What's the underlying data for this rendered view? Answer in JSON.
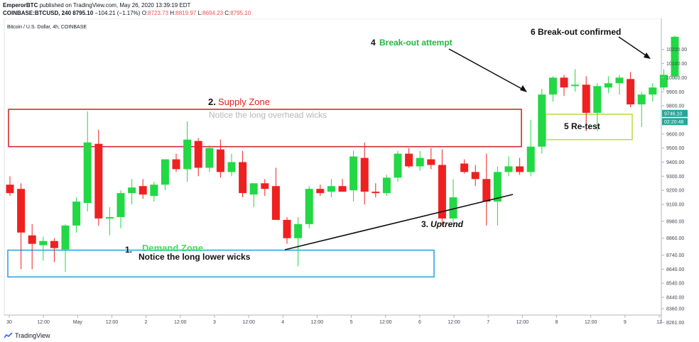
{
  "header": {
    "line1_user": "EmperorBTC",
    "line1_rest": " published on TradingView.com, May 26, 2020 13:39:19 EDT",
    "symbol": "COINBASE:BTCUSD, 240",
    "last": "8795.10",
    "change": "−104.21 (−1.17%)",
    "o_label": "O:",
    "o_value": "8723.73",
    "h_label": "H:",
    "h_value": "8819.97",
    "l_label": "L:",
    "l_value": "8694.23",
    "c_label": "C:",
    "c_value": "8795.10"
  },
  "chart_title": "Bitcoin / U.S. Dollar, 4h, COINBASE",
  "footer": {
    "brand": "TradingView"
  },
  "colors": {
    "up": "#22d844",
    "down": "#ef2020",
    "supply": "#d22b2b",
    "demand": "#2ea6e0",
    "retest": "#b9dd4c"
  },
  "chart_data": {
    "type": "candlestick",
    "title": "Bitcoin / U.S. Dollar, 4h, COINBASE",
    "ylim": [
      8261,
      10310
    ],
    "y_ticks": [
      10200,
      10100,
      10000,
      9900,
      9800,
      9700,
      9600,
      9500,
      9400,
      9300,
      9200,
      9100,
      8980,
      8860,
      8740,
      8640,
      8540,
      8440,
      8360,
      8261
    ],
    "y_tick_labels": [
      "10200.00",
      "10100.00",
      "10000.00",
      "9900.00",
      "9800.00",
      "9700.00",
      "9600.00",
      "9500.00",
      "9400.00",
      "9300.00",
      "9200.00",
      "9100.00",
      "8980.00",
      "8860.00",
      "8740.00",
      "8640.00",
      "8540.00",
      "8440.00",
      "8360.00",
      "8261.00"
    ],
    "x_tick_labels": [
      "30",
      "12:00",
      "May",
      "12:00",
      "2",
      "12:00",
      "3",
      "12:00",
      "4",
      "12:00",
      "5",
      "12:00",
      "6",
      "12:00",
      "7",
      "12:00",
      "8",
      "12:00",
      "9",
      "12"
    ],
    "price_labels": [
      {
        "text": "9746.10",
        "price": 9746,
        "color": "#26a69a"
      },
      {
        "text": "02:20:48",
        "price": 9688,
        "color": "#26a69a"
      }
    ],
    "candles": [
      {
        "o": 9240,
        "h": 9300,
        "l": 9160,
        "c": 9180
      },
      {
        "o": 9210,
        "h": 9250,
        "l": 8640,
        "c": 8900
      },
      {
        "o": 8880,
        "h": 8960,
        "l": 8640,
        "c": 8820
      },
      {
        "o": 8810,
        "h": 8870,
        "l": 8700,
        "c": 8840
      },
      {
        "o": 8840,
        "h": 8860,
        "l": 8690,
        "c": 8790
      },
      {
        "o": 8780,
        "h": 8960,
        "l": 8620,
        "c": 8950
      },
      {
        "o": 8950,
        "h": 9150,
        "l": 8900,
        "c": 9120
      },
      {
        "o": 9110,
        "h": 9760,
        "l": 9050,
        "c": 9540
      },
      {
        "o": 9530,
        "h": 9630,
        "l": 8950,
        "c": 9000
      },
      {
        "o": 9000,
        "h": 9080,
        "l": 8880,
        "c": 9010
      },
      {
        "o": 9010,
        "h": 9200,
        "l": 8930,
        "c": 9180
      },
      {
        "o": 9180,
        "h": 9280,
        "l": 9100,
        "c": 9220
      },
      {
        "o": 9230,
        "h": 9280,
        "l": 9140,
        "c": 9170
      },
      {
        "o": 9160,
        "h": 9260,
        "l": 9120,
        "c": 9240
      },
      {
        "o": 9240,
        "h": 9420,
        "l": 9200,
        "c": 9420
      },
      {
        "o": 9420,
        "h": 9460,
        "l": 9330,
        "c": 9350
      },
      {
        "o": 9350,
        "h": 9690,
        "l": 9260,
        "c": 9560
      },
      {
        "o": 9550,
        "h": 9570,
        "l": 9300,
        "c": 9360
      },
      {
        "o": 9360,
        "h": 9520,
        "l": 9330,
        "c": 9500
      },
      {
        "o": 9490,
        "h": 9560,
        "l": 9290,
        "c": 9330
      },
      {
        "o": 9330,
        "h": 9460,
        "l": 9300,
        "c": 9400
      },
      {
        "o": 9400,
        "h": 9480,
        "l": 9150,
        "c": 9180
      },
      {
        "o": 9170,
        "h": 9250,
        "l": 9080,
        "c": 9250
      },
      {
        "o": 9250,
        "h": 9280,
        "l": 9160,
        "c": 9210
      },
      {
        "o": 9230,
        "h": 9360,
        "l": 9000,
        "c": 8990
      },
      {
        "o": 8990,
        "h": 9010,
        "l": 8820,
        "c": 8860
      },
      {
        "o": 8860,
        "h": 9010,
        "l": 8660,
        "c": 8960
      },
      {
        "o": 8960,
        "h": 9230,
        "l": 8930,
        "c": 9210
      },
      {
        "o": 9210,
        "h": 9240,
        "l": 9160,
        "c": 9180
      },
      {
        "o": 9190,
        "h": 9280,
        "l": 9150,
        "c": 9230
      },
      {
        "o": 9230,
        "h": 9280,
        "l": 9190,
        "c": 9190
      },
      {
        "o": 9200,
        "h": 9480,
        "l": 9120,
        "c": 9440
      },
      {
        "o": 9430,
        "h": 9540,
        "l": 9100,
        "c": 9190
      },
      {
        "o": 9190,
        "h": 9250,
        "l": 9150,
        "c": 9180
      },
      {
        "o": 9180,
        "h": 9310,
        "l": 9160,
        "c": 9290
      },
      {
        "o": 9290,
        "h": 9480,
        "l": 9260,
        "c": 9460
      },
      {
        "o": 9460,
        "h": 9500,
        "l": 9360,
        "c": 9370
      },
      {
        "o": 9370,
        "h": 9480,
        "l": 9340,
        "c": 9430
      },
      {
        "o": 9420,
        "h": 9500,
        "l": 9350,
        "c": 9380
      },
      {
        "o": 9380,
        "h": 9490,
        "l": 8950,
        "c": 9000
      },
      {
        "o": 9000,
        "h": 9280,
        "l": 8960,
        "c": 9150
      },
      {
        "o": 9390,
        "h": 9420,
        "l": 9320,
        "c": 9330
      },
      {
        "o": 9330,
        "h": 9380,
        "l": 9230,
        "c": 9280
      },
      {
        "o": 9280,
        "h": 9460,
        "l": 8950,
        "c": 9120
      },
      {
        "o": 9120,
        "h": 9370,
        "l": 8950,
        "c": 9330
      },
      {
        "o": 9330,
        "h": 9440,
        "l": 9300,
        "c": 9370
      },
      {
        "o": 9370,
        "h": 9430,
        "l": 9310,
        "c": 9330
      },
      {
        "o": 9330,
        "h": 9700,
        "l": 9300,
        "c": 9510
      },
      {
        "o": 9510,
        "h": 9920,
        "l": 9460,
        "c": 9880
      },
      {
        "o": 9880,
        "h": 10010,
        "l": 9830,
        "c": 10000
      },
      {
        "o": 10000,
        "h": 10020,
        "l": 9870,
        "c": 9930
      },
      {
        "o": 9940,
        "h": 10060,
        "l": 9900,
        "c": 9950
      },
      {
        "o": 9950,
        "h": 10010,
        "l": 9620,
        "c": 9750
      },
      {
        "o": 9750,
        "h": 9960,
        "l": 9620,
        "c": 9940
      },
      {
        "o": 9930,
        "h": 10010,
        "l": 9890,
        "c": 9960
      },
      {
        "o": 9960,
        "h": 10020,
        "l": 9880,
        "c": 10000
      },
      {
        "o": 9990,
        "h": 10040,
        "l": 9790,
        "c": 9810
      },
      {
        "o": 9810,
        "h": 9900,
        "l": 9650,
        "c": 9880
      },
      {
        "o": 9880,
        "h": 9960,
        "l": 9830,
        "c": 9930
      },
      {
        "o": 9930,
        "h": 10060,
        "l": 9910,
        "c": 10020
      },
      {
        "o": 10010,
        "h": 10300,
        "l": 9990,
        "c": 10290
      }
    ],
    "zones": {
      "supply": {
        "top": 9775,
        "bottom": 9510
      },
      "demand": {
        "top": 8775,
        "bottom": 8585
      },
      "retest": {
        "top": 9740,
        "bottom": 9560
      }
    }
  },
  "annotations": {
    "supply_number": "2.",
    "supply_title": "Supply Zone",
    "supply_note": "Notice the long overhead wicks",
    "demand_number": "1.",
    "demand_title": "Demand Zone",
    "demand_note": "Notice the long lower wicks",
    "uptrend_number": "3.",
    "uptrend_label": "Uptrend",
    "breakout_attempt_number": "4",
    "breakout_attempt_label": "Break-out attempt",
    "retest_label": "5 Re-test",
    "breakout_confirmed_label": "6 Break-out confirmed"
  }
}
